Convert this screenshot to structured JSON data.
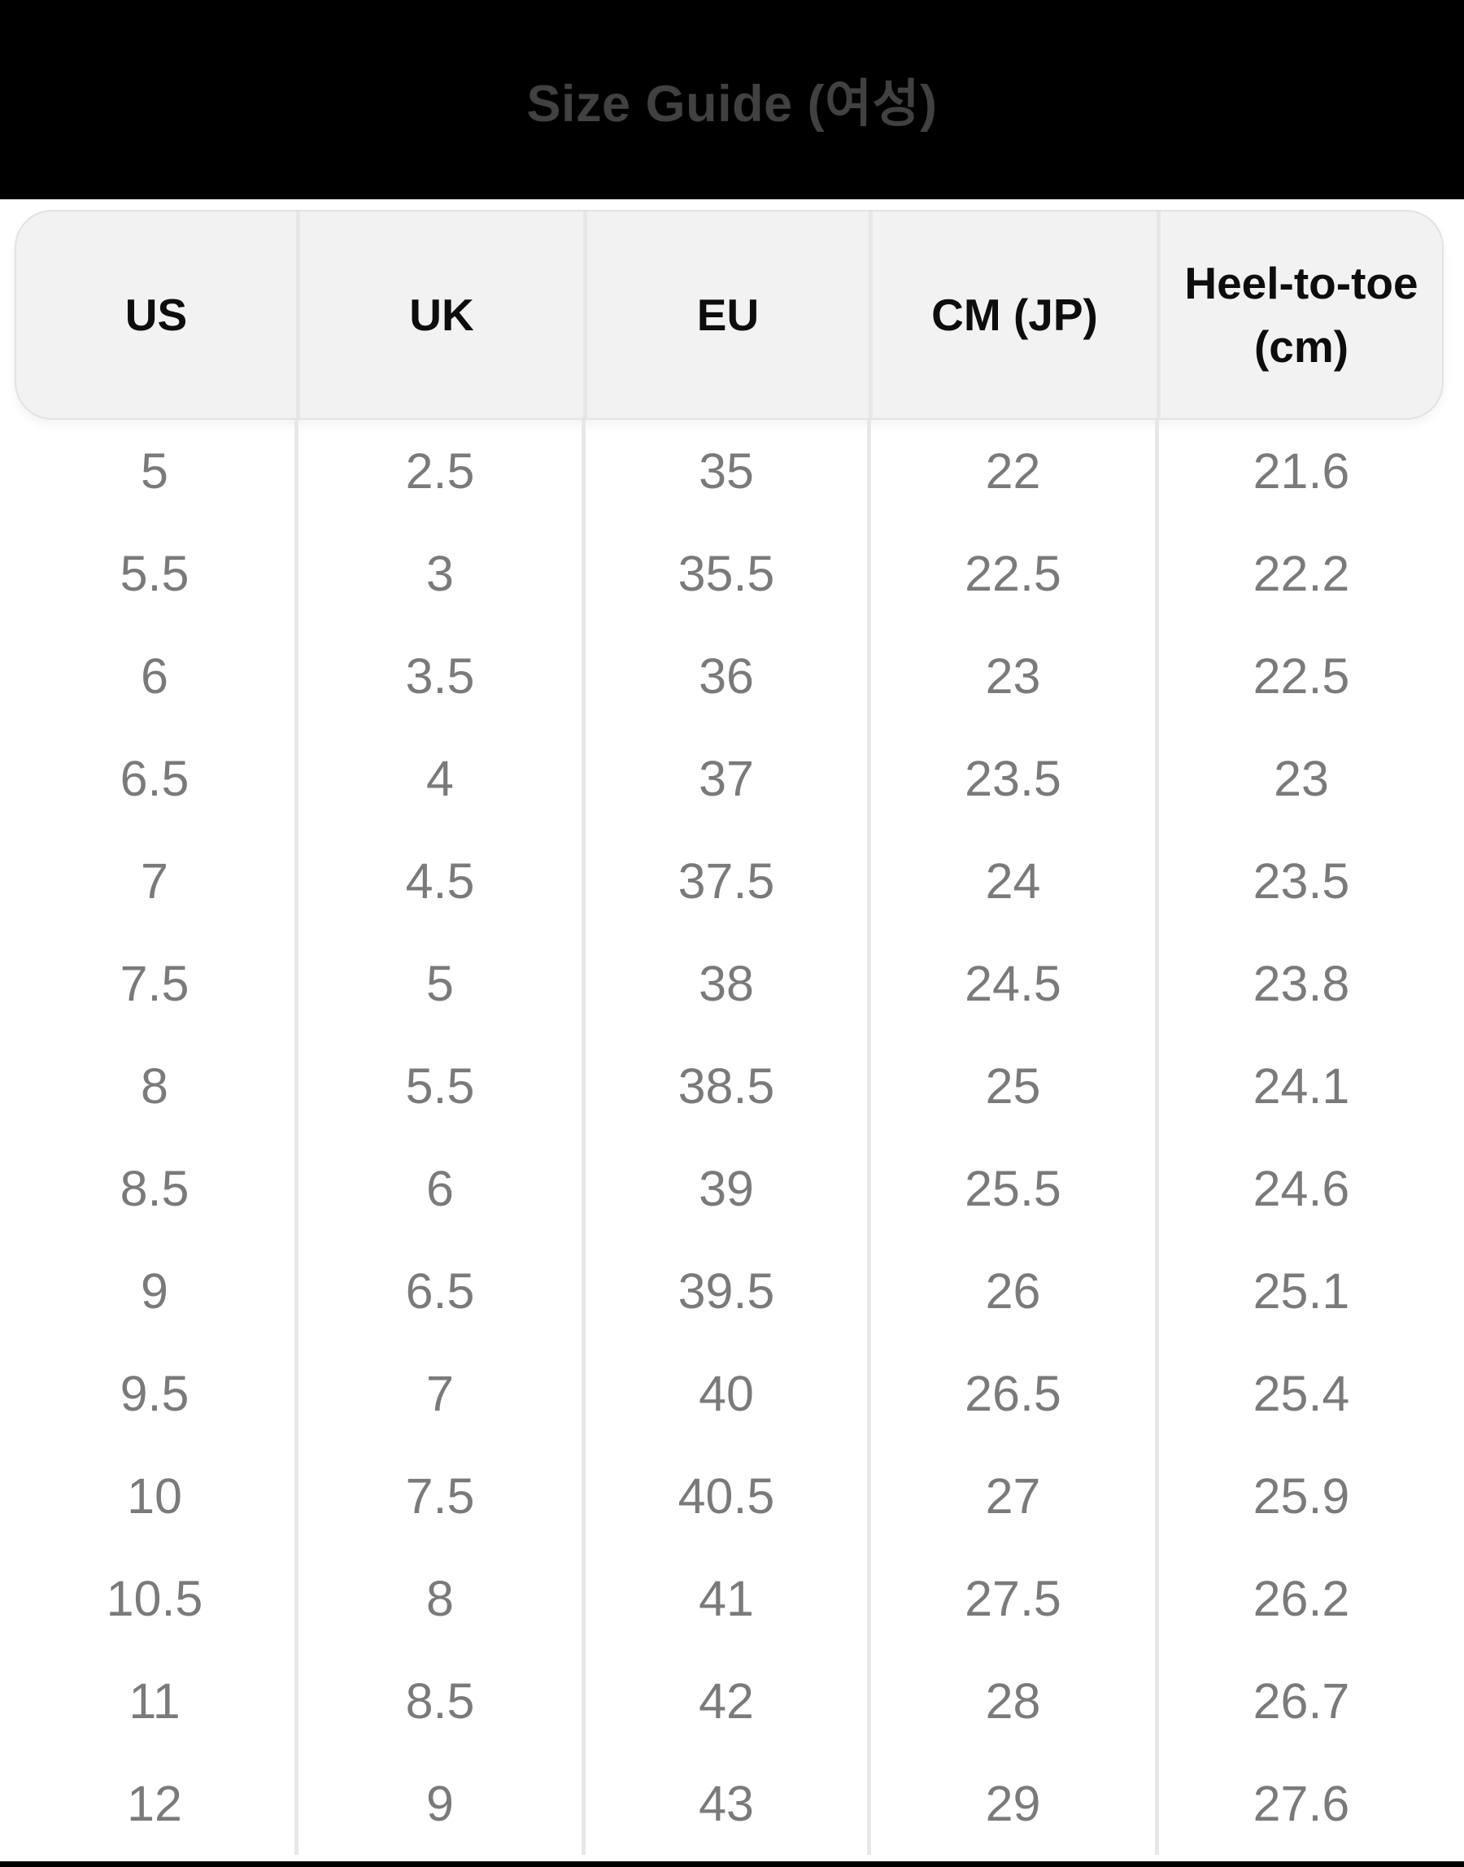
{
  "title": "Size Guide (여성)",
  "table": {
    "columns": [
      "US",
      "UK",
      "EU",
      "CM (JP)",
      "Heel-to-toe (cm)"
    ],
    "rows": [
      [
        "5",
        "2.5",
        "35",
        "22",
        "21.6"
      ],
      [
        "5.5",
        "3",
        "35.5",
        "22.5",
        "22.2"
      ],
      [
        "6",
        "3.5",
        "36",
        "23",
        "22.5"
      ],
      [
        "6.5",
        "4",
        "37",
        "23.5",
        "23"
      ],
      [
        "7",
        "4.5",
        "37.5",
        "24",
        "23.5"
      ],
      [
        "7.5",
        "5",
        "38",
        "24.5",
        "23.8"
      ],
      [
        "8",
        "5.5",
        "38.5",
        "25",
        "24.1"
      ],
      [
        "8.5",
        "6",
        "39",
        "25.5",
        "24.6"
      ],
      [
        "9",
        "6.5",
        "39.5",
        "26",
        "25.1"
      ],
      [
        "9.5",
        "7",
        "40",
        "26.5",
        "25.4"
      ],
      [
        "10",
        "7.5",
        "40.5",
        "27",
        "25.9"
      ],
      [
        "10.5",
        "8",
        "41",
        "27.5",
        "26.2"
      ],
      [
        "11",
        "8.5",
        "42",
        "28",
        "26.7"
      ],
      [
        "12",
        "9",
        "43",
        "29",
        "27.6"
      ]
    ]
  },
  "colors": {
    "top_bar_bg": "#000000",
    "title_text": "#414141",
    "header_bg": "#f2f2f2",
    "header_text": "#0d0d0d",
    "body_text": "#7a7a7a",
    "separator": "#e7e7e7",
    "bottom_strip_bg": "#000000"
  }
}
